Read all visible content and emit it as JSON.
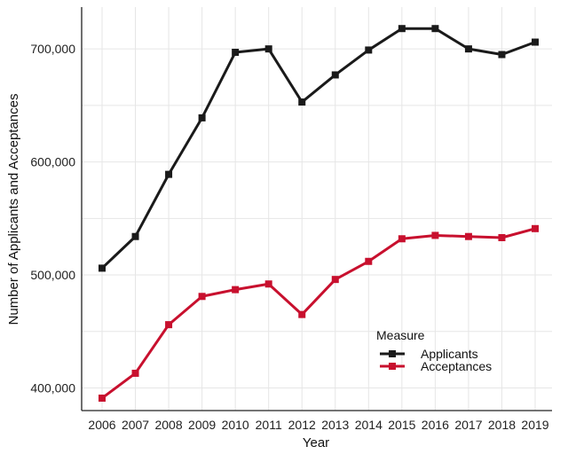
{
  "chart_data": {
    "type": "line",
    "title": "",
    "xlabel": "Year",
    "ylabel": "Number of Applicants and Acceptances",
    "categories": [
      "2006",
      "2007",
      "2008",
      "2009",
      "2010",
      "2011",
      "2012",
      "2013",
      "2014",
      "2015",
      "2016",
      "2017",
      "2018",
      "2019"
    ],
    "y_ticks": [
      "400,000",
      "500,000",
      "600,000",
      "700,000"
    ],
    "y_tick_values": [
      400000,
      500000,
      600000,
      700000
    ],
    "ylim": [
      380000,
      737000
    ],
    "grid": true,
    "legend": {
      "title": "Measure",
      "placement": "bottom-right"
    },
    "series": [
      {
        "name": "Applicants",
        "color": "#1a1a1a",
        "values": [
          506000,
          534000,
          589000,
          639000,
          697000,
          700000,
          653000,
          677000,
          699000,
          718000,
          718000,
          700000,
          695000,
          706000
        ]
      },
      {
        "name": "Acceptances",
        "color": "#c8102e",
        "values": [
          391000,
          413000,
          456000,
          481000,
          487000,
          492000,
          465000,
          496000,
          512000,
          532000,
          535000,
          534000,
          533000,
          541000
        ]
      }
    ]
  }
}
